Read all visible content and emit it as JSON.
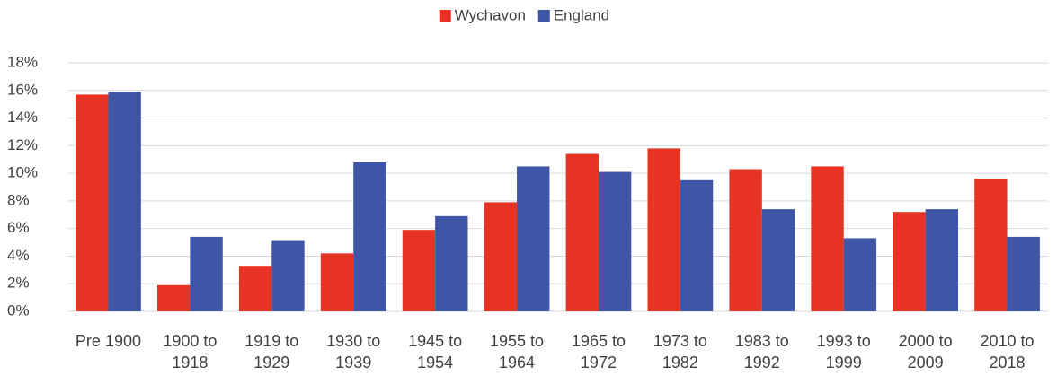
{
  "chart_data": {
    "type": "bar",
    "categories": [
      "Pre 1900",
      "1900 to 1918",
      "1919 to 1929",
      "1930 to 1939",
      "1945 to 1954",
      "1955 to 1964",
      "1965 to 1972",
      "1973 to 1982",
      "1983 to 1992",
      "1993 to 1999",
      "2000 to 2009",
      "2010 to 2018"
    ],
    "series": [
      {
        "name": "Wychavon",
        "color": "#e63323",
        "values": [
          15.7,
          1.9,
          3.3,
          4.2,
          5.9,
          7.9,
          11.4,
          11.8,
          10.3,
          10.5,
          7.2,
          9.6
        ]
      },
      {
        "name": "England",
        "color": "#3f55a6",
        "values": [
          15.9,
          5.4,
          5.1,
          10.8,
          6.9,
          10.5,
          10.1,
          9.5,
          7.4,
          5.3,
          7.4,
          5.4
        ]
      }
    ],
    "ylim": [
      0,
      18
    ],
    "yticks": [
      {
        "value": 0,
        "label": "0%"
      },
      {
        "value": 2,
        "label": "2%"
      },
      {
        "value": 4,
        "label": "4%"
      },
      {
        "value": 6,
        "label": "6%"
      },
      {
        "value": 8,
        "label": "8%"
      },
      {
        "value": 10,
        "label": "10%"
      },
      {
        "value": 12,
        "label": "12%"
      },
      {
        "value": 14,
        "label": "14%"
      },
      {
        "value": 16,
        "label": "16%"
      },
      {
        "value": 18,
        "label": "18%"
      }
    ],
    "grid": true,
    "legend": "top"
  }
}
